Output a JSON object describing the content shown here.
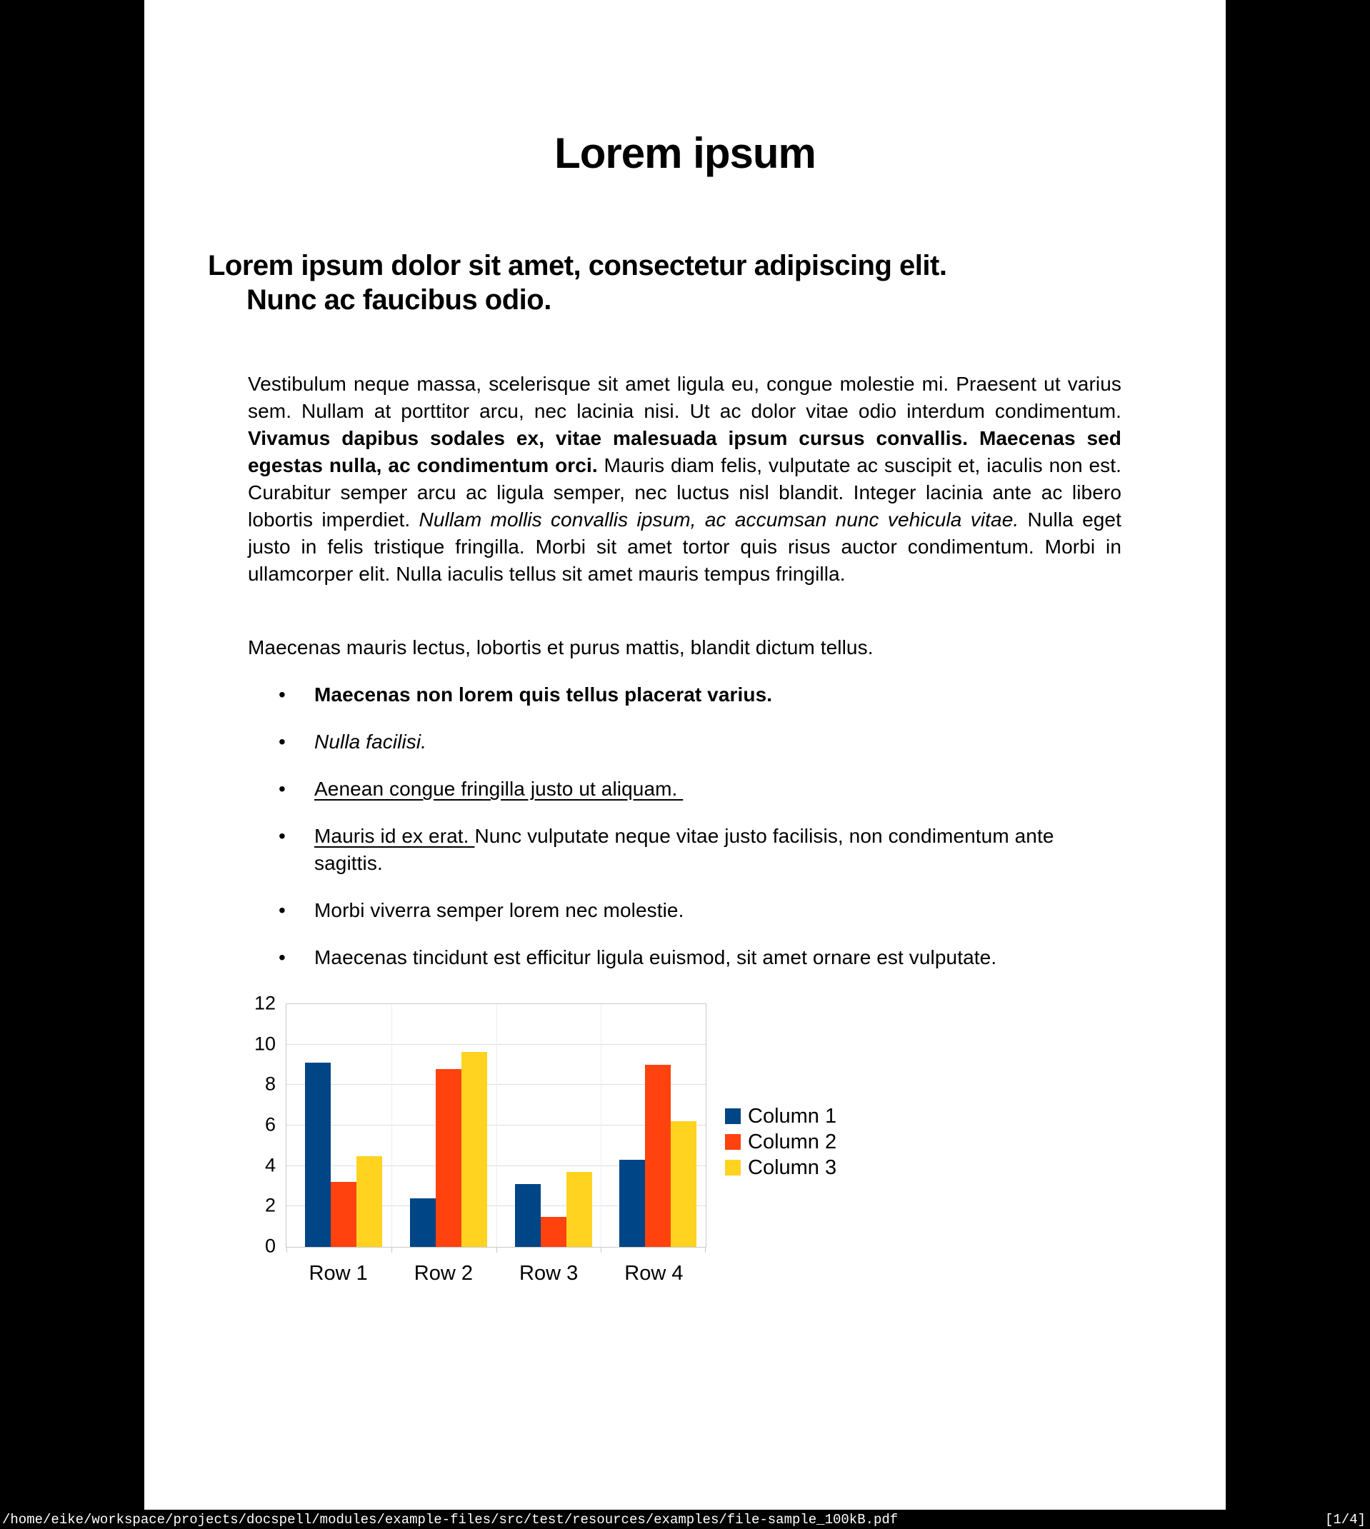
{
  "page": {
    "title": "Lorem ipsum",
    "heading_lines": [
      "Lorem ipsum dolor sit amet, consectetur adipiscing elit.",
      "Nunc ac faucibus odio."
    ],
    "paragraph1_segments": [
      {
        "text": "Vestibulum neque massa, scelerisque sit amet ligula eu, congue molestie mi. Praesent ut varius sem. Nullam at porttitor arcu, nec lacinia nisi. Ut ac dolor vitae odio interdum condimentum. "
      },
      {
        "text": "Vivamus dapibus sodales ex, vitae malesuada ipsum cursus convallis. Maecenas sed egestas nulla, ac condimentum orci.",
        "b": true
      },
      {
        "text": " Mauris diam felis, vulputate ac suscipit et, iaculis non est. Curabitur semper arcu ac ligula semper, nec luctus nisl blandit. Integer lacinia ante ac libero lobortis imperdiet. "
      },
      {
        "text": "Nullam mollis convallis ipsum, ac accumsan nunc vehicula vitae.",
        "i": true
      },
      {
        "text": " Nulla eget justo in felis tristique fringilla. Morbi sit amet tortor quis risus auctor condimentum. Morbi in ullamcorper elit. Nulla iaculis tellus sit amet mauris tempus fringilla."
      }
    ],
    "paragraph2": "Maecenas mauris lectus, lobortis et purus mattis, blandit dictum tellus.",
    "bullet_marker": "•",
    "bullets": [
      {
        "segments": [
          {
            "text": "Maecenas non lorem quis tellus placerat varius.",
            "b": true
          }
        ]
      },
      {
        "segments": [
          {
            "text": "Nulla facilisi.",
            "i": true
          }
        ]
      },
      {
        "segments": [
          {
            "text": "Aenean congue fringilla justo ut aliquam. ",
            "u": true
          }
        ]
      },
      {
        "segments": [
          {
            "text": "Mauris id ex erat. ",
            "u": true
          },
          {
            "text": "Nunc vulputate neque vitae justo facilisis, non condimentum ante sagittis."
          }
        ]
      },
      {
        "segments": [
          {
            "text": "Morbi viverra semper lorem nec molestie."
          }
        ]
      },
      {
        "segments": [
          {
            "text": "Maecenas tincidunt est efficitur ligula euismod, sit amet ornare est vulputate."
          }
        ]
      }
    ]
  },
  "chart_data": {
    "type": "bar",
    "title": "",
    "xlabel": "",
    "ylabel": "",
    "categories": [
      "Row 1",
      "Row 2",
      "Row 3",
      "Row 4"
    ],
    "series": [
      {
        "name": "Column 1",
        "color": "#004586",
        "values": [
          9.1,
          2.4,
          3.1,
          4.3
        ]
      },
      {
        "name": "Column 2",
        "color": "#ff420e",
        "values": [
          3.2,
          8.8,
          1.5,
          9.0
        ]
      },
      {
        "name": "Column 3",
        "color": "#ffd320",
        "values": [
          4.5,
          9.65,
          3.7,
          6.2
        ]
      }
    ],
    "ylim": [
      0,
      12
    ],
    "yticks": [
      0,
      2,
      4,
      6,
      8,
      10,
      12
    ],
    "grid": "horizontal",
    "legend_position": "right"
  },
  "colors": {
    "canvas_bg": "#000000",
    "page_bg": "#ffffff",
    "statusbar_bg": "#000000",
    "statusbar_fg": "#ffffff"
  },
  "statusbar": {
    "file_path": "/home/eike/workspace/projects/docspell/modules/example-files/src/test/resources/examples/file-sample_100kB.pdf",
    "page_indicator": "[1/4]"
  }
}
